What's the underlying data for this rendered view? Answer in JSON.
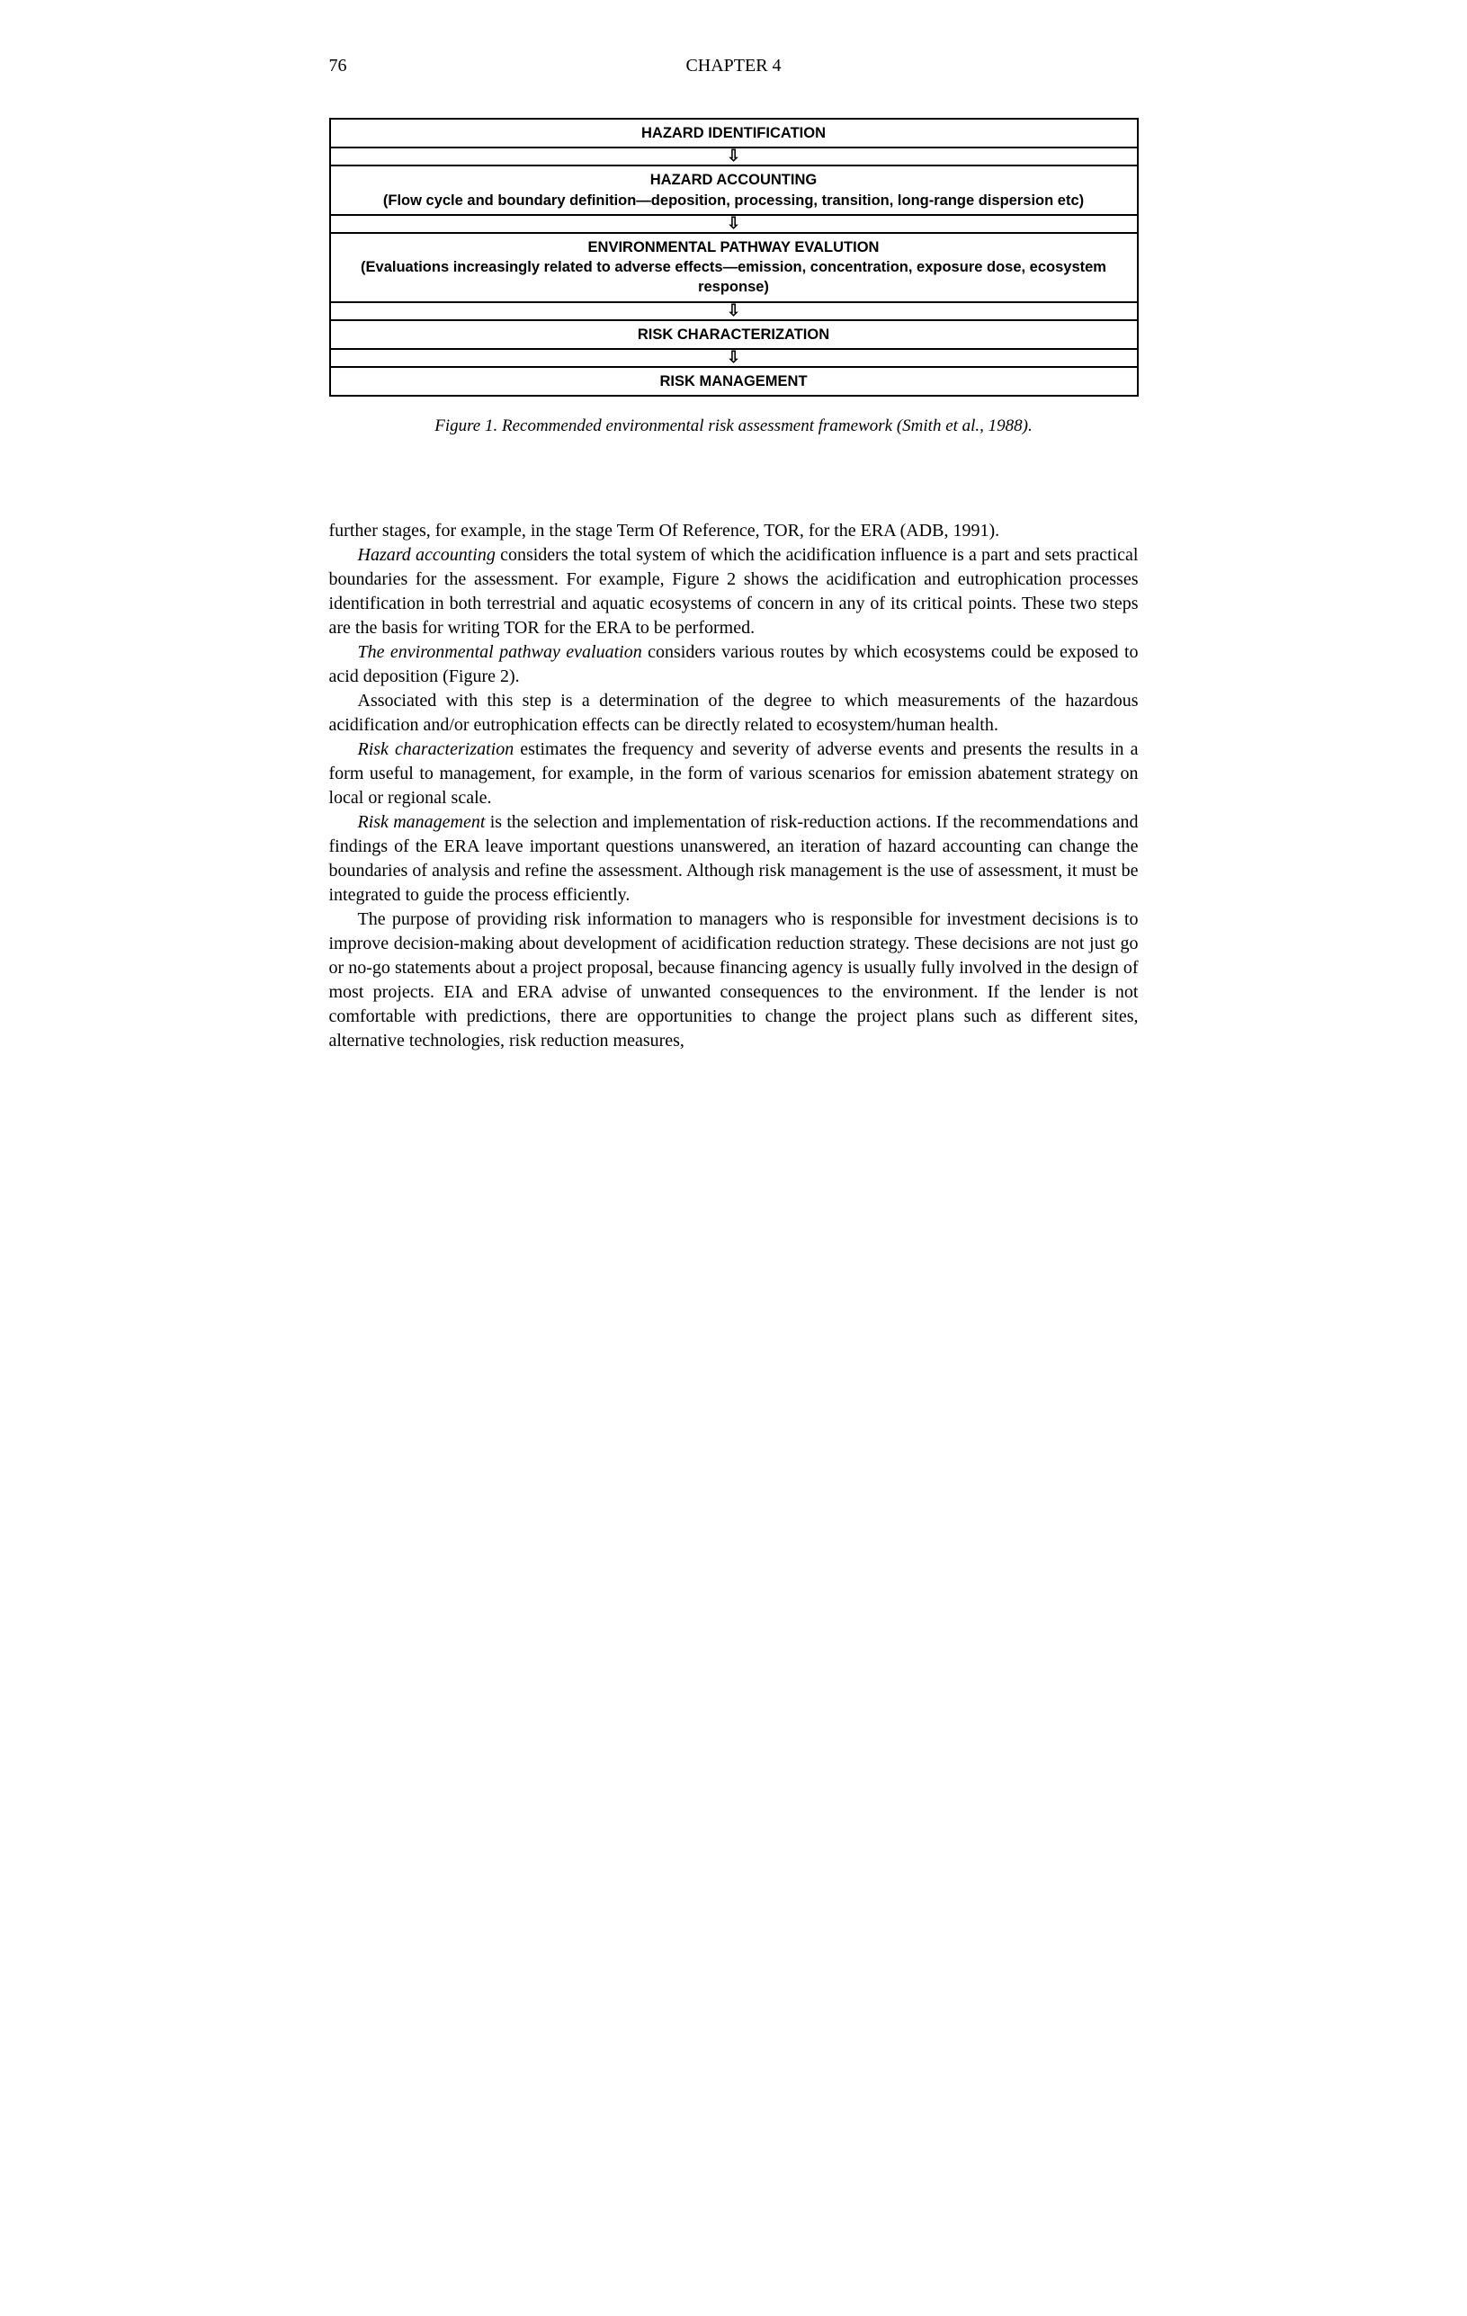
{
  "header": {
    "page_number": "76",
    "chapter": "CHAPTER 4"
  },
  "diagram": {
    "rows": [
      {
        "title": "HAZARD IDENTIFICATION",
        "sub": ""
      },
      {
        "title": "HAZARD ACCOUNTING",
        "sub": "(Flow cycle and boundary definition—deposition, processing, transition, long-range dispersion etc)"
      },
      {
        "title": "ENVIRONMENTAL PATHWAY EVALUTION",
        "sub": "(Evaluations increasingly related to adverse effects—emission, concentration, exposure dose, ecosystem response)"
      },
      {
        "title": "RISK CHARACTERIZATION",
        "sub": ""
      },
      {
        "title": "RISK MANAGEMENT",
        "sub": ""
      }
    ],
    "arrow_glyph": "⇩"
  },
  "figure_caption": "Figure 1. Recommended environmental risk assessment framework (Smith et al., 1988).",
  "paragraphs": {
    "p1": "further stages, for example, in the stage Term Of Reference, TOR, for the ERA (ADB, 1991).",
    "p2_em": "Hazard accounting",
    "p2_rest": " considers the total system of which the acidification influence is a part and sets practical boundaries for the assessment. For example, Figure 2 shows the acidification and eutrophication processes identification in both terrestrial and aquatic ecosystems of concern in any of its critical points. These two steps are the basis for writing TOR for the ERA to be performed.",
    "p3_em": "The environmental pathway evaluation",
    "p3_rest": " considers various routes by which ecosystems could be exposed to acid deposition (Figure 2).",
    "p4": "Associated with this step is a determination of the degree to which measurements of the hazardous acidification and/or eutrophication effects can be directly related to ecosystem/human health.",
    "p5_em": "Risk characterization",
    "p5_rest": " estimates the frequency and severity of adverse events and presents the results in a form useful to management, for example, in the form of various scenarios for emission abatement strategy on local or regional scale.",
    "p6_em": "Risk management",
    "p6_rest": " is the selection and implementation of risk-reduction actions. If the recommendations and findings of the ERA leave important questions unanswered, an iteration of hazard accounting can change the boundaries of analysis and refine the assessment. Although risk management is the use of assessment, it must be integrated to guide the process efficiently.",
    "p7": "The purpose of providing risk information to managers who is responsible for investment decisions is to improve decision-making about development of acidification reduction strategy. These decisions are not just go or no-go statements about a project proposal, because financing agency is usually fully involved in the design of most projects. EIA and ERA advise of unwanted consequences to the environment. If the lender is not comfortable with predictions, there are opportunities to change the project plans such as different sites, alternative technologies, risk reduction measures,"
  }
}
